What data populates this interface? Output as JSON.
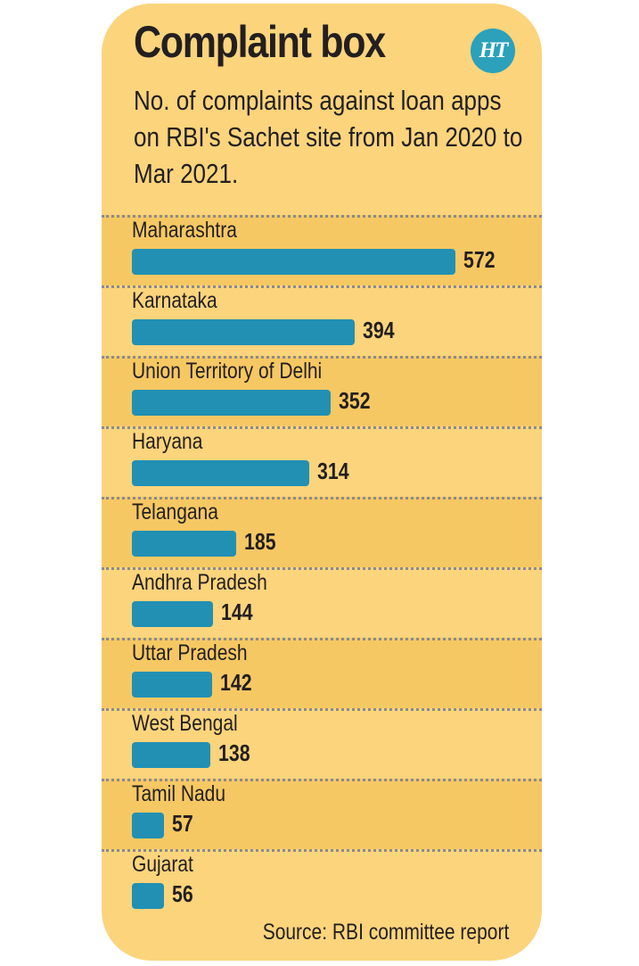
{
  "header": {
    "title": "Complaint box",
    "logo_text": "HT",
    "subtitle": "No. of complaints against loan apps on RBI's Sachet site from Jan 2020 to Mar 2021."
  },
  "footer": {
    "source": "Source: RBI committee report"
  },
  "colors": {
    "background": "#fbd47c",
    "band": "#f6c863",
    "bar": "#2290b3",
    "logo": "#2ba1bb"
  },
  "chart_data": {
    "type": "bar",
    "orientation": "horizontal",
    "title": "Complaint box",
    "subtitle": "No. of complaints against loan apps on RBI's Sachet site from Jan 2020 to Mar 2021.",
    "categories": [
      "Maharashtra",
      "Karnataka",
      "Union Territory of Delhi",
      "Haryana",
      "Telangana",
      "Andhra Pradesh",
      "Uttar Pradesh",
      "West Bengal",
      "Tamil Nadu",
      "Gujarat"
    ],
    "values": [
      572,
      394,
      352,
      314,
      185,
      144,
      142,
      138,
      57,
      56
    ],
    "xlabel": "",
    "ylabel": "",
    "xlim": [
      0,
      572
    ],
    "source": "Source: RBI committee report"
  }
}
